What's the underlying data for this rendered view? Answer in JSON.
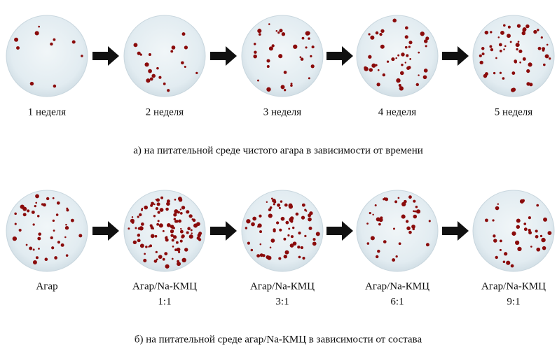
{
  "panel_a": {
    "dishes": [
      {
        "label": "1 неделя"
      },
      {
        "label": "2 неделя"
      },
      {
        "label": "3 неделя"
      },
      {
        "label": "4 неделя"
      },
      {
        "label": "5 неделя"
      }
    ],
    "caption": "а) на питательной среде чистого агара в зависимости от времени"
  },
  "panel_b": {
    "dishes": [
      {
        "label": "Агар"
      },
      {
        "label": "Агар/Na-КМЦ",
        "ratio": "1:1"
      },
      {
        "label": "Агар/Na-КМЦ",
        "ratio": "3:1"
      },
      {
        "label": "Агар/Na-КМЦ",
        "ratio": "6:1"
      },
      {
        "label": "Агар/Na-КМЦ",
        "ratio": "9:1"
      }
    ],
    "caption": "б)  на питательной среде агар/Na-КМЦ в зависимости от состава"
  }
}
